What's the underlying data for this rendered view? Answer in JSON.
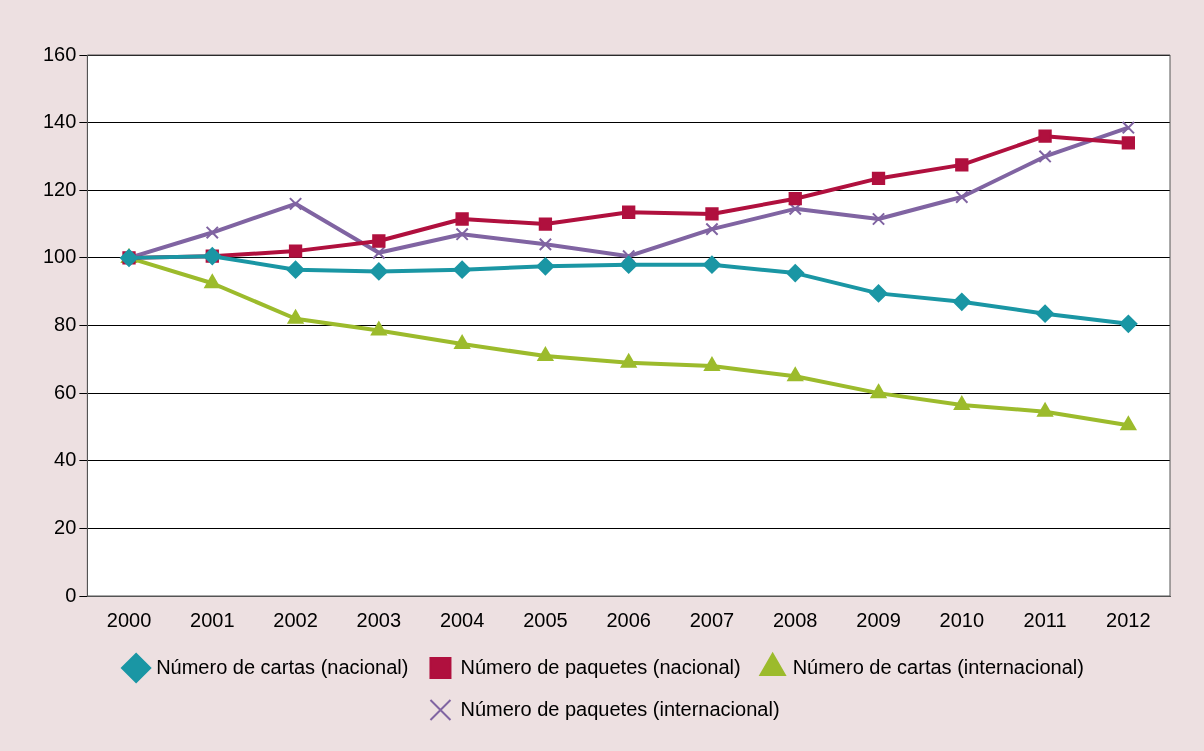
{
  "chart_data": {
    "type": "line",
    "categories": [
      "2000",
      "2001",
      "2002",
      "2003",
      "2004",
      "2005",
      "2006",
      "2007",
      "2008",
      "2009",
      "2010",
      "2011",
      "2012"
    ],
    "series": [
      {
        "name": "Número de cartas (nacional)",
        "color": "#1a96a4",
        "marker": "diamond",
        "values": [
          100,
          100.5,
          96.5,
          96,
          96.5,
          97.5,
          98,
          98,
          95.5,
          89.5,
          87,
          83.5,
          80.5
        ]
      },
      {
        "name": "Número de paquetes (nacional)",
        "color": "#b0103e",
        "marker": "square",
        "values": [
          100,
          100.5,
          102,
          105,
          111.5,
          110,
          113.5,
          113,
          117.5,
          123.5,
          127.5,
          136,
          134
        ]
      },
      {
        "name": "Número de cartas (internacional)",
        "color": "#9cbb2c",
        "marker": "triangle",
        "values": [
          100,
          92.5,
          82,
          78.5,
          74.5,
          71,
          69,
          68,
          65,
          60,
          56.5,
          54.5,
          50.5
        ]
      },
      {
        "name": "Número de paquetes (internacional)",
        "color": "#8064a2",
        "marker": "cross",
        "values": [
          100,
          107.5,
          116,
          101.5,
          107,
          104,
          100.5,
          108.5,
          114.5,
          111.5,
          118,
          130,
          138.5
        ]
      }
    ],
    "ylim": [
      0,
      160
    ],
    "yticks": [
      0,
      20,
      40,
      60,
      80,
      100,
      120,
      140,
      160
    ],
    "grid": "y",
    "legend": "bottom",
    "line_style": "solid"
  }
}
